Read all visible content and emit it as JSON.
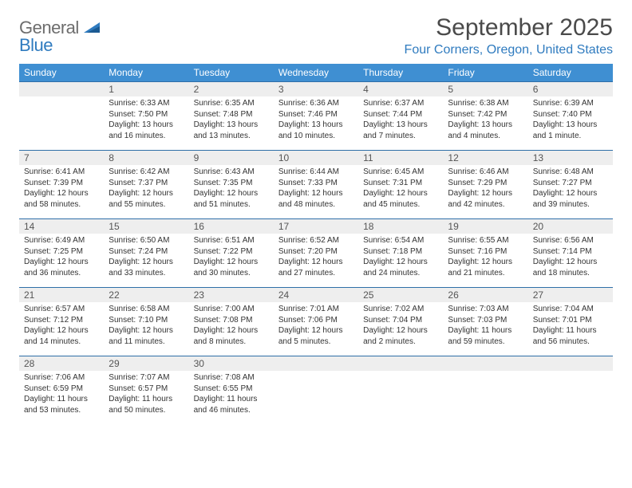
{
  "logo": {
    "general": "General",
    "blue": "Blue"
  },
  "title": "September 2025",
  "location": "Four Corners, Oregon, United States",
  "style": {
    "header_bg": "#3f8fd2",
    "header_fg": "#ffffff",
    "daynum_bg": "#eeeeee",
    "daynum_border": "#2f6fa8",
    "accent": "#2f7bbf",
    "title_color": "#4a4a4a",
    "body_text": "#333333",
    "title_fontsize": 30,
    "location_fontsize": 16,
    "dayhead_fontsize": 12,
    "body_fontsize": 10
  },
  "weekdays": [
    "Sunday",
    "Monday",
    "Tuesday",
    "Wednesday",
    "Thursday",
    "Friday",
    "Saturday"
  ],
  "weeks": [
    [
      null,
      {
        "n": "1",
        "sr": "Sunrise: 6:33 AM",
        "ss": "Sunset: 7:50 PM",
        "d1": "Daylight: 13 hours",
        "d2": "and 16 minutes."
      },
      {
        "n": "2",
        "sr": "Sunrise: 6:35 AM",
        "ss": "Sunset: 7:48 PM",
        "d1": "Daylight: 13 hours",
        "d2": "and 13 minutes."
      },
      {
        "n": "3",
        "sr": "Sunrise: 6:36 AM",
        "ss": "Sunset: 7:46 PM",
        "d1": "Daylight: 13 hours",
        "d2": "and 10 minutes."
      },
      {
        "n": "4",
        "sr": "Sunrise: 6:37 AM",
        "ss": "Sunset: 7:44 PM",
        "d1": "Daylight: 13 hours",
        "d2": "and 7 minutes."
      },
      {
        "n": "5",
        "sr": "Sunrise: 6:38 AM",
        "ss": "Sunset: 7:42 PM",
        "d1": "Daylight: 13 hours",
        "d2": "and 4 minutes."
      },
      {
        "n": "6",
        "sr": "Sunrise: 6:39 AM",
        "ss": "Sunset: 7:40 PM",
        "d1": "Daylight: 13 hours",
        "d2": "and 1 minute."
      }
    ],
    [
      {
        "n": "7",
        "sr": "Sunrise: 6:41 AM",
        "ss": "Sunset: 7:39 PM",
        "d1": "Daylight: 12 hours",
        "d2": "and 58 minutes."
      },
      {
        "n": "8",
        "sr": "Sunrise: 6:42 AM",
        "ss": "Sunset: 7:37 PM",
        "d1": "Daylight: 12 hours",
        "d2": "and 55 minutes."
      },
      {
        "n": "9",
        "sr": "Sunrise: 6:43 AM",
        "ss": "Sunset: 7:35 PM",
        "d1": "Daylight: 12 hours",
        "d2": "and 51 minutes."
      },
      {
        "n": "10",
        "sr": "Sunrise: 6:44 AM",
        "ss": "Sunset: 7:33 PM",
        "d1": "Daylight: 12 hours",
        "d2": "and 48 minutes."
      },
      {
        "n": "11",
        "sr": "Sunrise: 6:45 AM",
        "ss": "Sunset: 7:31 PM",
        "d1": "Daylight: 12 hours",
        "d2": "and 45 minutes."
      },
      {
        "n": "12",
        "sr": "Sunrise: 6:46 AM",
        "ss": "Sunset: 7:29 PM",
        "d1": "Daylight: 12 hours",
        "d2": "and 42 minutes."
      },
      {
        "n": "13",
        "sr": "Sunrise: 6:48 AM",
        "ss": "Sunset: 7:27 PM",
        "d1": "Daylight: 12 hours",
        "d2": "and 39 minutes."
      }
    ],
    [
      {
        "n": "14",
        "sr": "Sunrise: 6:49 AM",
        "ss": "Sunset: 7:25 PM",
        "d1": "Daylight: 12 hours",
        "d2": "and 36 minutes."
      },
      {
        "n": "15",
        "sr": "Sunrise: 6:50 AM",
        "ss": "Sunset: 7:24 PM",
        "d1": "Daylight: 12 hours",
        "d2": "and 33 minutes."
      },
      {
        "n": "16",
        "sr": "Sunrise: 6:51 AM",
        "ss": "Sunset: 7:22 PM",
        "d1": "Daylight: 12 hours",
        "d2": "and 30 minutes."
      },
      {
        "n": "17",
        "sr": "Sunrise: 6:52 AM",
        "ss": "Sunset: 7:20 PM",
        "d1": "Daylight: 12 hours",
        "d2": "and 27 minutes."
      },
      {
        "n": "18",
        "sr": "Sunrise: 6:54 AM",
        "ss": "Sunset: 7:18 PM",
        "d1": "Daylight: 12 hours",
        "d2": "and 24 minutes."
      },
      {
        "n": "19",
        "sr": "Sunrise: 6:55 AM",
        "ss": "Sunset: 7:16 PM",
        "d1": "Daylight: 12 hours",
        "d2": "and 21 minutes."
      },
      {
        "n": "20",
        "sr": "Sunrise: 6:56 AM",
        "ss": "Sunset: 7:14 PM",
        "d1": "Daylight: 12 hours",
        "d2": "and 18 minutes."
      }
    ],
    [
      {
        "n": "21",
        "sr": "Sunrise: 6:57 AM",
        "ss": "Sunset: 7:12 PM",
        "d1": "Daylight: 12 hours",
        "d2": "and 14 minutes."
      },
      {
        "n": "22",
        "sr": "Sunrise: 6:58 AM",
        "ss": "Sunset: 7:10 PM",
        "d1": "Daylight: 12 hours",
        "d2": "and 11 minutes."
      },
      {
        "n": "23",
        "sr": "Sunrise: 7:00 AM",
        "ss": "Sunset: 7:08 PM",
        "d1": "Daylight: 12 hours",
        "d2": "and 8 minutes."
      },
      {
        "n": "24",
        "sr": "Sunrise: 7:01 AM",
        "ss": "Sunset: 7:06 PM",
        "d1": "Daylight: 12 hours",
        "d2": "and 5 minutes."
      },
      {
        "n": "25",
        "sr": "Sunrise: 7:02 AM",
        "ss": "Sunset: 7:04 PM",
        "d1": "Daylight: 12 hours",
        "d2": "and 2 minutes."
      },
      {
        "n": "26",
        "sr": "Sunrise: 7:03 AM",
        "ss": "Sunset: 7:03 PM",
        "d1": "Daylight: 11 hours",
        "d2": "and 59 minutes."
      },
      {
        "n": "27",
        "sr": "Sunrise: 7:04 AM",
        "ss": "Sunset: 7:01 PM",
        "d1": "Daylight: 11 hours",
        "d2": "and 56 minutes."
      }
    ],
    [
      {
        "n": "28",
        "sr": "Sunrise: 7:06 AM",
        "ss": "Sunset: 6:59 PM",
        "d1": "Daylight: 11 hours",
        "d2": "and 53 minutes."
      },
      {
        "n": "29",
        "sr": "Sunrise: 7:07 AM",
        "ss": "Sunset: 6:57 PM",
        "d1": "Daylight: 11 hours",
        "d2": "and 50 minutes."
      },
      {
        "n": "30",
        "sr": "Sunrise: 7:08 AM",
        "ss": "Sunset: 6:55 PM",
        "d1": "Daylight: 11 hours",
        "d2": "and 46 minutes."
      },
      null,
      null,
      null,
      null
    ]
  ]
}
